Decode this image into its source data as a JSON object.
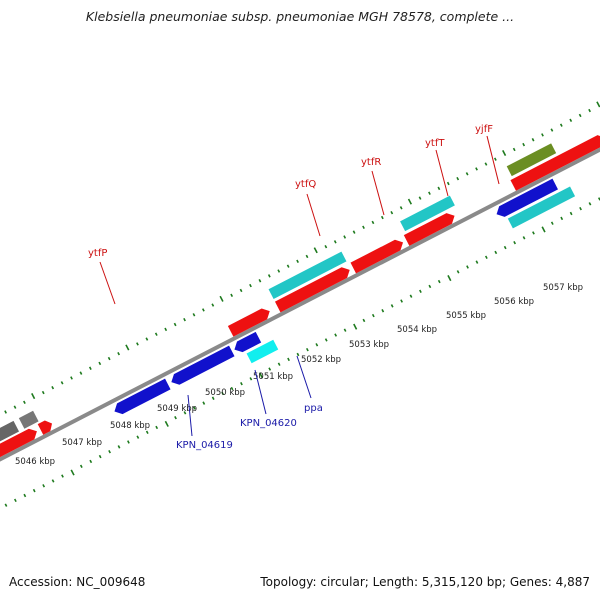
{
  "title": "Klebsiella pneumoniae subsp. pneumoniae MGH 78578, complete ...",
  "footer": {
    "accession": "Accession: NC_009648",
    "summary": "Topology: circular; Length: 5,315,120 bp; Genes: 4,887"
  },
  "colors": {
    "forward_cds": "#ee1111",
    "reverse_cds": "#1111cc",
    "rna_top": "#22c6c6",
    "rna_bottom": "#11eeee",
    "pseudo": "#666666",
    "other": "#6b8e23",
    "backbone": "#8a8a8a",
    "ticks": "#1e7a1e",
    "top_label": "#cc1111",
    "bottom_label": "#1a1aa8"
  },
  "scale": {
    "tick_labels": [
      "5046 kbp",
      "5047 kbp",
      "5048 kbp",
      "5049 kbp",
      "5050 kbp",
      "5051 kbp",
      "5052 kbp",
      "5053 kbp",
      "5054 kbp",
      "5055 kbp",
      "5056 kbp",
      "5057 kbp"
    ]
  },
  "gene_labels_top": [
    "ytfP",
    "ytfQ",
    "ytfR",
    "ytfT",
    "yjfF"
  ],
  "gene_labels_bottom": [
    "KPN_04619",
    "KPN_04620",
    "ppa"
  ]
}
